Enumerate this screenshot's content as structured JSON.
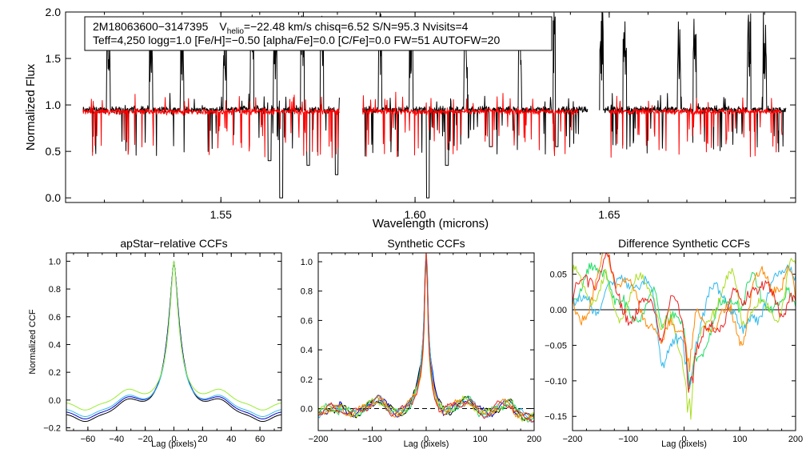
{
  "chart_data": [
    {
      "type": "line",
      "panel": "spectrum",
      "title": "",
      "xlabel": "Wavelength (microns)",
      "ylabel": "Normalized Flux",
      "xlim": [
        1.51,
        1.698
      ],
      "ylim": [
        -0.05,
        2.0
      ],
      "xticks": [
        1.55,
        1.6,
        1.65
      ],
      "xtick_labels": [
        "1.55",
        "1.60",
        "1.65"
      ],
      "yticks": [
        0.0,
        0.5,
        1.0,
        1.5,
        2.0
      ],
      "ytick_labels": [
        "0.0",
        "0.5",
        "1.0",
        "1.5",
        "2.0"
      ],
      "segments": [
        [
          1.5145,
          1.5805
        ],
        [
          1.5865,
          1.6445
        ],
        [
          1.6475,
          1.6955
        ]
      ],
      "model_segments": [
        [
          1.5145,
          1.5805
        ],
        [
          1.5865,
          1.642
        ],
        [
          1.65,
          1.6945
        ]
      ],
      "series": [
        {
          "name": "observed",
          "color": "#000000",
          "baseline": 0.95
        },
        {
          "name": "model",
          "color": "#ff0000",
          "baseline": 0.93
        }
      ],
      "spikes_up": [
        1.521,
        1.532,
        1.54,
        1.551,
        1.558,
        1.564,
        1.571,
        1.576,
        1.591,
        1.599,
        1.613,
        1.627,
        1.636,
        1.648,
        1.654,
        1.668,
        1.672,
        1.686,
        1.69
      ],
      "dips_down": [
        [
          1.5655,
          0.0
        ],
        [
          1.5798,
          0.25
        ],
        [
          1.6033,
          0.0
        ],
        [
          1.5625,
          0.4
        ],
        [
          1.5725,
          0.35
        ],
        [
          1.6082,
          0.35
        ],
        [
          1.6195,
          0.55
        ],
        [
          1.6365,
          0.55
        ]
      ],
      "info_line1": {
        "star": "2M18063600−3147395",
        "v": "V",
        "v_sub": "helio",
        "v_rest": "=−22.48 km/s  chisq=6.52  S/N=95.3  Nvisits=4"
      },
      "info_line2": "Teff=4,250 logg=1.0 [Fe/H]=−0.50 [alpha/Fe]=0.0 [C/Fe]=0.0 FW=51 AUTOFW=20"
    },
    {
      "type": "line",
      "panel": "apstar",
      "title": "apStar−relative CCFs",
      "xlabel": "Lag (pixels)",
      "ylabel": "Normalized CCF",
      "xlim": [
        -75,
        75
      ],
      "ylim": [
        -0.22,
        1.06
      ],
      "xticks": [
        -60,
        -40,
        -20,
        0,
        20,
        40,
        60
      ],
      "xtick_labels": [
        "−60",
        "−40",
        "−20",
        "0",
        "20",
        "40",
        "60"
      ],
      "yticks": [
        -0.2,
        0.0,
        0.2,
        0.4,
        0.6,
        0.8,
        1.0
      ],
      "ytick_labels": [
        "−0.2",
        "0.0",
        "0.2",
        "0.4",
        "0.6",
        "0.8",
        "1.0"
      ],
      "series": [
        {
          "name": "visit 1",
          "color": "#000000",
          "width": 5.2,
          "min": -0.17
        },
        {
          "name": "visit 2",
          "color": "#0000cc",
          "width": 5.0,
          "min": -0.15
        },
        {
          "name": "visit 3",
          "color": "#33bbee",
          "width": 4.6,
          "min": -0.13
        },
        {
          "name": "visit 4",
          "color": "#99ee33",
          "width": 4.3,
          "min": -0.08
        }
      ]
    },
    {
      "type": "line",
      "panel": "synthetic",
      "title": "Synthetic CCFs",
      "xlabel": "Lag (pixels)",
      "ylabel": "",
      "xlim": [
        -200,
        200
      ],
      "ylim": [
        -0.15,
        1.06
      ],
      "xticks": [
        -200,
        -100,
        0,
        100,
        200
      ],
      "xtick_labels": [
        "−200",
        "−100",
        "0",
        "100",
        "200"
      ],
      "yticks": [
        0.0,
        0.2,
        0.4,
        0.6,
        0.8,
        1.0
      ],
      "ytick_labels": [
        "0.0",
        "0.2",
        "0.4",
        "0.6",
        "0.8",
        "1.0"
      ],
      "zero_line": 0.0,
      "series": [
        {
          "name": "visit 1",
          "color": "#000000"
        },
        {
          "name": "visit 2",
          "color": "#0000cc"
        },
        {
          "name": "visit 3",
          "color": "#33bbee"
        },
        {
          "name": "visit 4",
          "color": "#22dd66"
        },
        {
          "name": "visit 5",
          "color": "#aadd22"
        },
        {
          "name": "visit 6",
          "color": "#ff8800"
        },
        {
          "name": "visit 7",
          "color": "#ee2222"
        }
      ]
    },
    {
      "type": "line",
      "panel": "difference",
      "title": "Difference Synthetic CCFs",
      "xlabel": "Lag (pixels)",
      "ylabel": "",
      "xlim": [
        -200,
        200
      ],
      "ylim": [
        -0.17,
        0.08
      ],
      "xticks": [
        -200,
        -100,
        0,
        100,
        200
      ],
      "xtick_labels": [
        "−200",
        "−100",
        "0",
        "100",
        "200"
      ],
      "yticks": [
        -0.15,
        -0.1,
        -0.05,
        0.0,
        0.05
      ],
      "ytick_labels": [
        "−0.15",
        "−0.10",
        "−0.05",
        "0.00",
        "0.05"
      ],
      "zero_line": 0.0,
      "series": [
        {
          "name": "visit 1",
          "color": "#22dd66"
        },
        {
          "name": "visit 2",
          "color": "#aadd22"
        },
        {
          "name": "visit 3",
          "color": "#33bbee"
        },
        {
          "name": "visit 4",
          "color": "#ff8800"
        },
        {
          "name": "visit 5",
          "color": "#ee2222"
        }
      ]
    }
  ]
}
